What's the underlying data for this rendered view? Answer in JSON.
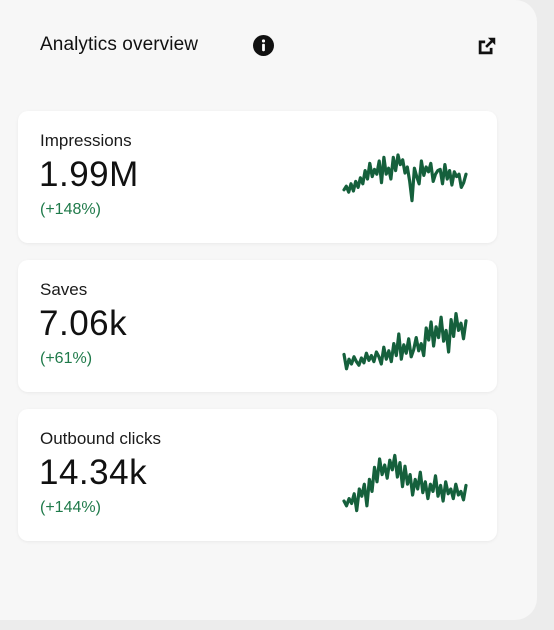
{
  "header": {
    "title": "Analytics overview",
    "info_icon": "info-icon",
    "external_icon": "external-link-icon"
  },
  "colors": {
    "positive": "#1f7a4a",
    "sparkline": "#15603c",
    "card_bg": "#ffffff",
    "panel_bg": "#f7f7f7"
  },
  "metrics": [
    {
      "label": "Impressions",
      "value": "1.99M",
      "change": "(+148%)",
      "trend": [
        31,
        34,
        29,
        36,
        30,
        38,
        33,
        41,
        36,
        47,
        40,
        53,
        42,
        48,
        44,
        55,
        37,
        58,
        44,
        49,
        40,
        58,
        47,
        60,
        52,
        56,
        45,
        50,
        38,
        22,
        49,
        42,
        36,
        55,
        43,
        50,
        46,
        53,
        38,
        44,
        47,
        48,
        36,
        52,
        40,
        47,
        35,
        46,
        42,
        44,
        33,
        37,
        44
      ]
    },
    {
      "label": "Saves",
      "value": "7.06k",
      "change": "(+61%)",
      "trend": [
        18,
        6,
        14,
        10,
        16,
        12,
        9,
        15,
        11,
        19,
        13,
        17,
        12,
        20,
        16,
        10,
        24,
        14,
        21,
        12,
        27,
        17,
        35,
        14,
        26,
        19,
        31,
        16,
        22,
        32,
        21,
        27,
        17,
        40,
        30,
        45,
        25,
        41,
        32,
        49,
        29,
        38,
        20,
        47,
        33,
        52,
        38,
        44,
        31,
        46
      ]
    },
    {
      "label": "Outbound clicks",
      "value": "14.34k",
      "change": "(+144%)",
      "trend": [
        20,
        16,
        22,
        18,
        26,
        12,
        30,
        24,
        34,
        16,
        38,
        28,
        48,
        36,
        55,
        42,
        50,
        39,
        54,
        46,
        58,
        40,
        52,
        32,
        49,
        34,
        42,
        25,
        38,
        30,
        44,
        27,
        36,
        22,
        34,
        28,
        41,
        24,
        33,
        20,
        36,
        26,
        30,
        22,
        34,
        25,
        28,
        21,
        33
      ]
    }
  ]
}
